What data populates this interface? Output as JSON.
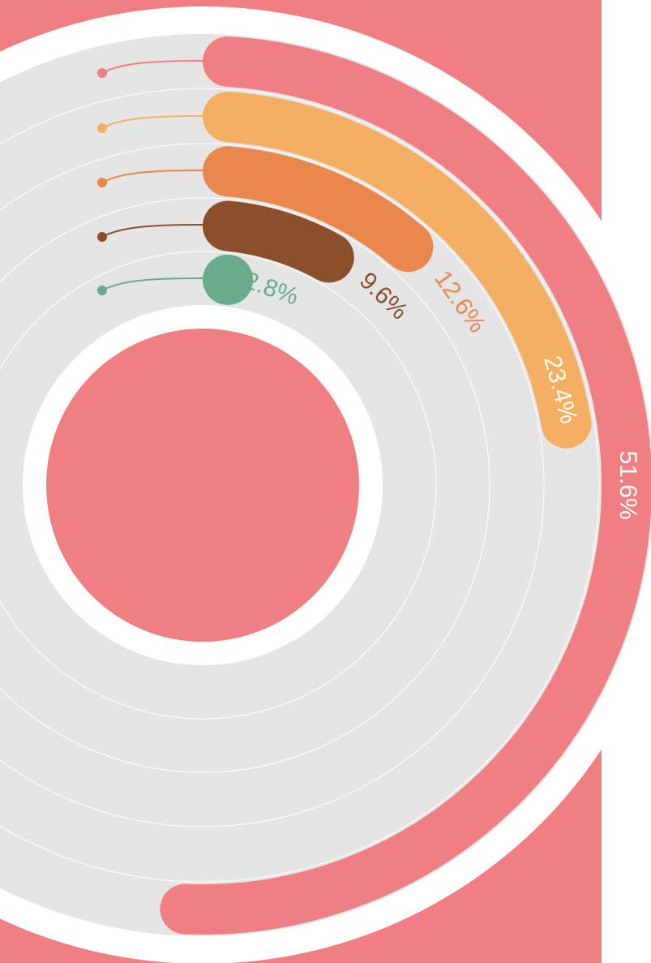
{
  "chart_data": {
    "type": "radial_bar",
    "values": [
      51.6,
      23.4,
      12.6,
      9.6,
      2.8
    ],
    "value_labels": [
      "51.6%",
      "23.4%",
      "12.6%",
      "9.6%",
      "2.8%"
    ],
    "colors": [
      "#f07f83",
      "#f4af62",
      "#ea874c",
      "#8b4f2b",
      "#6aab8e"
    ],
    "ylim": [
      0,
      100
    ]
  }
}
